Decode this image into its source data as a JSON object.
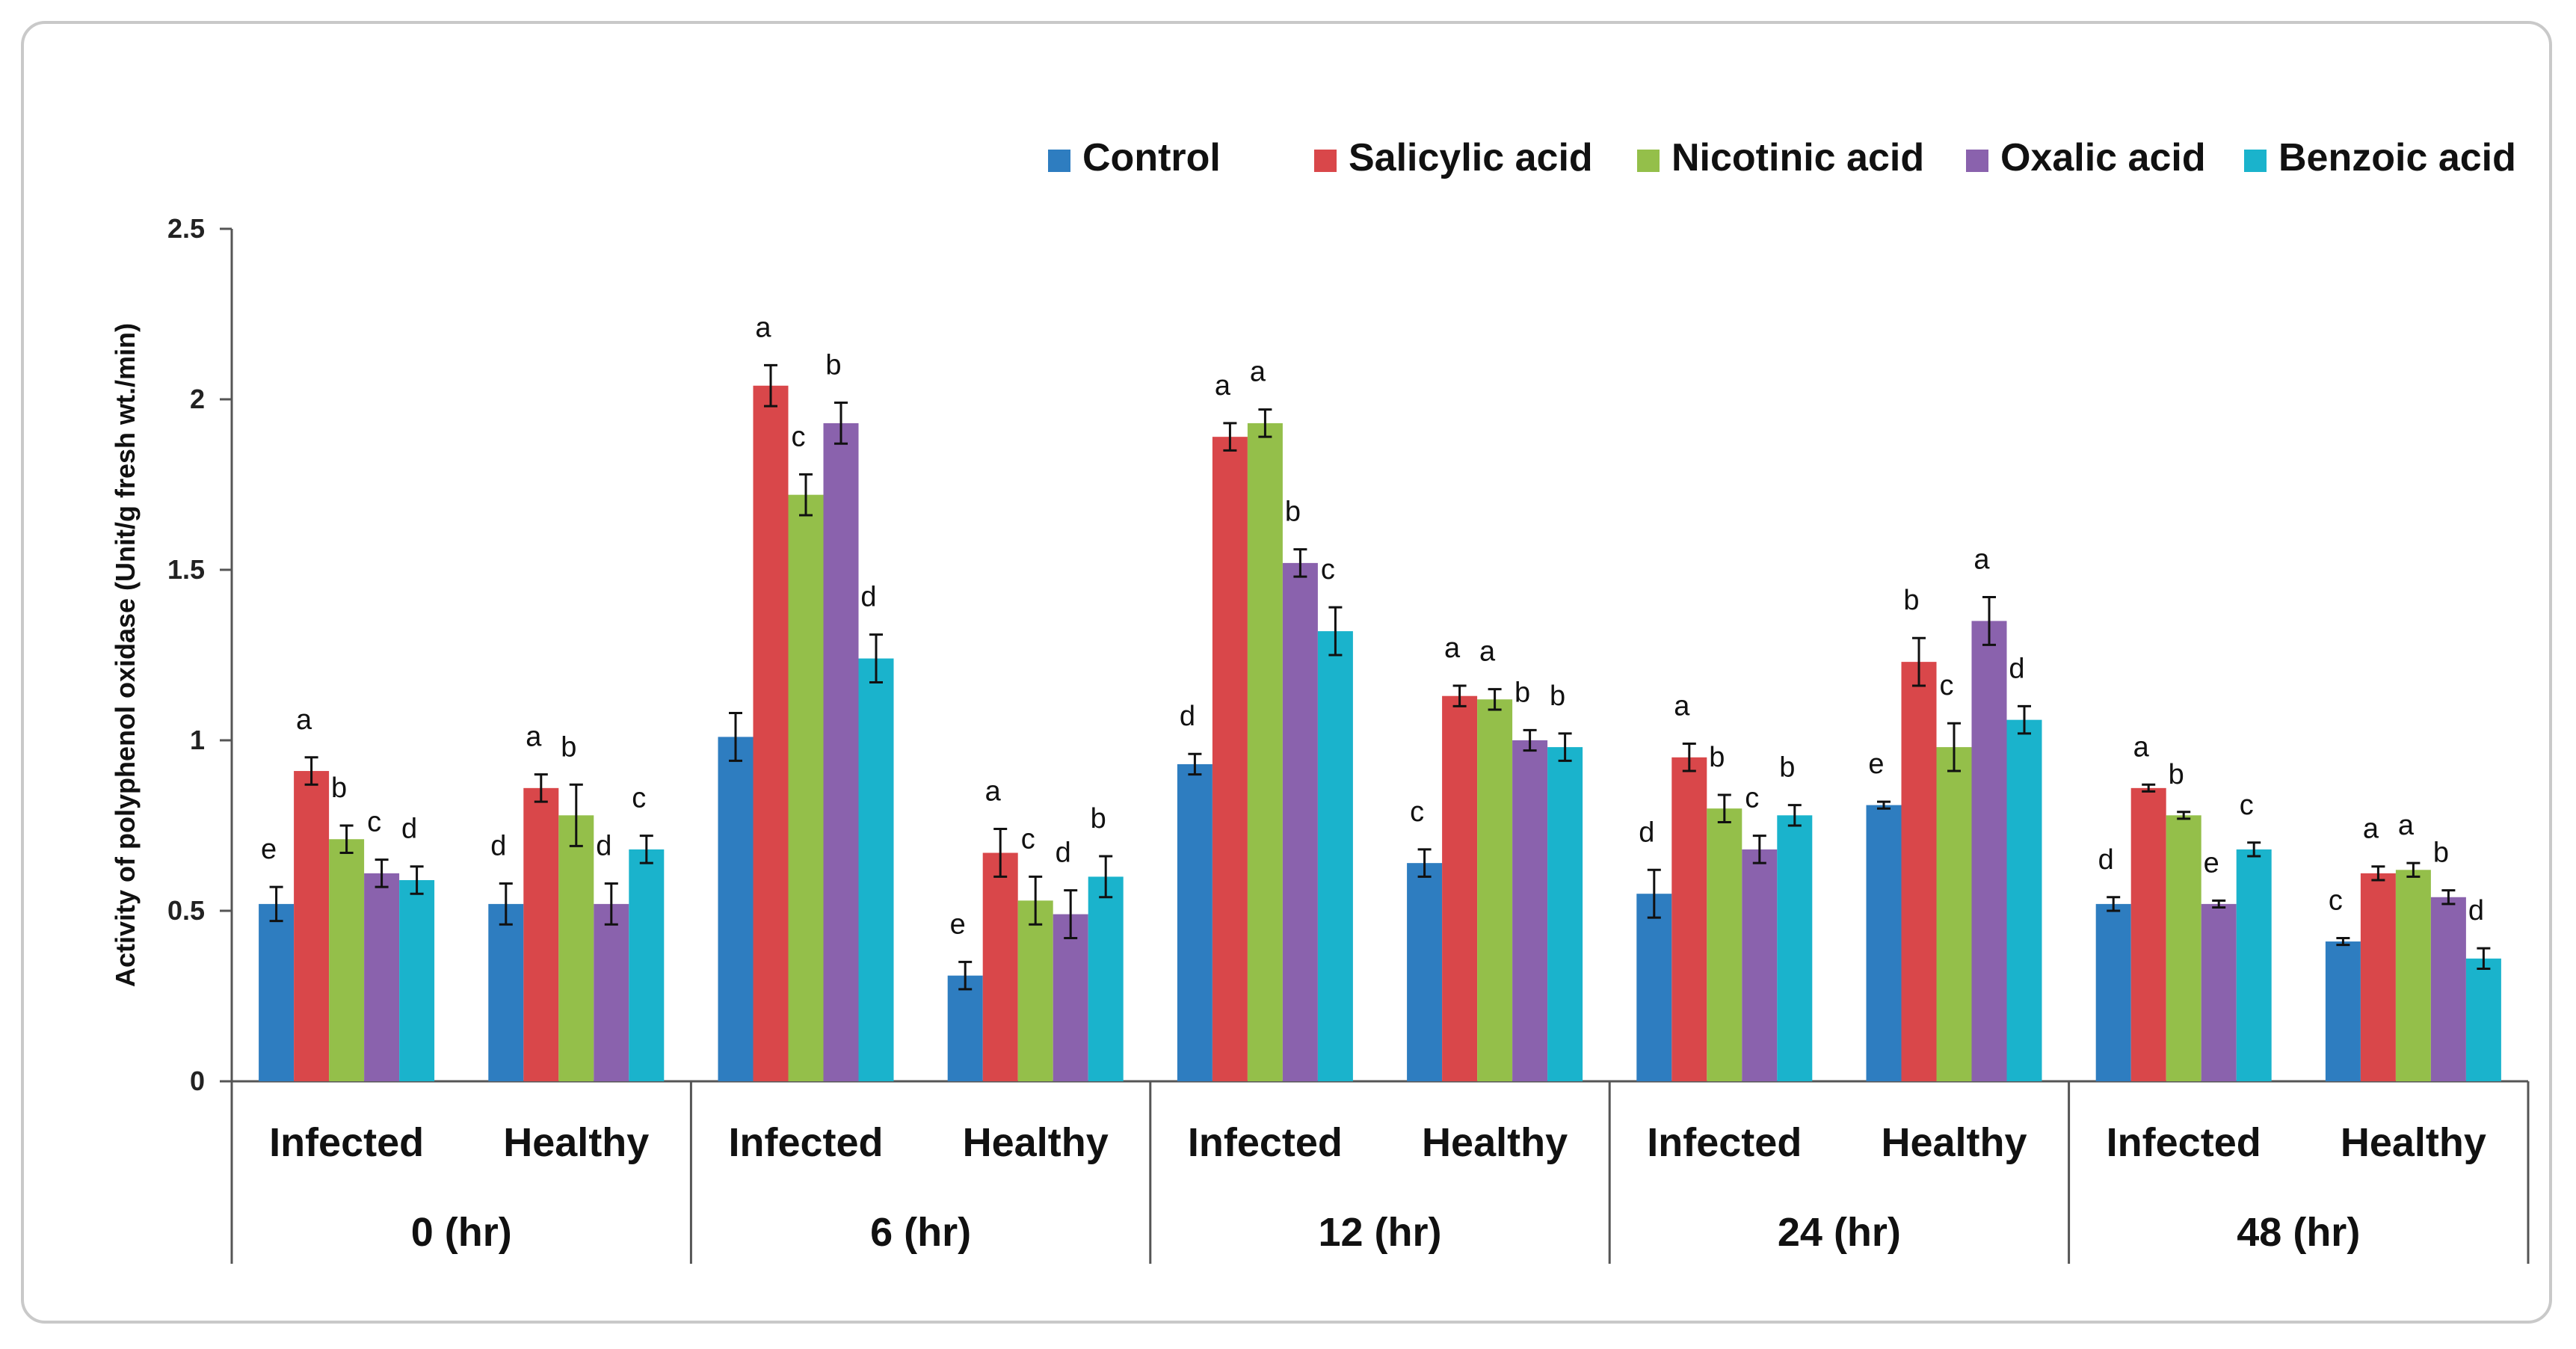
{
  "chart_data": {
    "type": "bar",
    "title": "",
    "xlabel": "",
    "ylabel": "Activity of polyphenol oxidase (Unit/g fresh wt./min)",
    "ylim": [
      0,
      2.5
    ],
    "yticks": [
      "0",
      "0.5",
      "1",
      "1.5",
      "2",
      "2.5"
    ],
    "grid": false,
    "legend_position": "top-right",
    "groups": [
      {
        "time": "0 (hr)",
        "conditions": [
          "Infected",
          "Healthy"
        ]
      },
      {
        "time": "6 (hr)",
        "conditions": [
          "Infected",
          "Healthy"
        ]
      },
      {
        "time": "12 (hr)",
        "conditions": [
          "Infected",
          "Healthy"
        ]
      },
      {
        "time": "24 (hr)",
        "conditions": [
          "Infected",
          "Healthy"
        ]
      },
      {
        "time": "48 (hr)",
        "conditions": [
          "Infected",
          "Healthy"
        ]
      }
    ],
    "categories": [
      "0 (hr) Infected",
      "0 (hr) Healthy",
      "6 (hr) Infected",
      "6 (hr) Healthy",
      "12 (hr) Infected",
      "12 (hr) Healthy",
      "24 (hr) Infected",
      "24 (hr) Healthy",
      "48 (hr) Infected",
      "48 (hr) Healthy"
    ],
    "series": [
      {
        "name": "Control",
        "color": "#2e7dc0",
        "values": [
          0.52,
          0.52,
          1.01,
          0.31,
          0.93,
          0.64,
          0.55,
          0.81,
          0.52,
          0.41
        ],
        "errors": [
          0.05,
          0.06,
          0.07,
          0.04,
          0.03,
          0.04,
          0.07,
          0.01,
          0.02,
          0.01
        ],
        "letters": [
          "e",
          "d",
          "",
          "e",
          "d",
          "c",
          "d",
          "e",
          "d",
          "c"
        ]
      },
      {
        "name": "Salicylic acid",
        "color": "#d9474a",
        "values": [
          0.91,
          0.86,
          2.04,
          0.67,
          1.89,
          1.13,
          0.95,
          1.23,
          0.86,
          0.61
        ],
        "errors": [
          0.04,
          0.04,
          0.06,
          0.07,
          0.04,
          0.03,
          0.04,
          0.07,
          0.01,
          0.02
        ],
        "letters": [
          "a",
          "a",
          "a",
          "a",
          "a",
          "a",
          "a",
          "b",
          "a",
          "a"
        ]
      },
      {
        "name": "Nicotinic acid",
        "color": "#94bf4a",
        "values": [
          0.71,
          0.78,
          1.72,
          0.53,
          1.93,
          1.12,
          0.8,
          0.98,
          0.78,
          0.62
        ],
        "errors": [
          0.04,
          0.09,
          0.06,
          0.07,
          0.04,
          0.03,
          0.04,
          0.07,
          0.01,
          0.02
        ],
        "letters": [
          "b",
          "b",
          "c",
          "c",
          "a",
          "a",
          "b",
          "c",
          "b",
          "a"
        ]
      },
      {
        "name": "Oxalic acid",
        "color": "#8a62ad",
        "values": [
          0.61,
          0.52,
          1.93,
          0.49,
          1.52,
          1.0,
          0.68,
          1.35,
          0.52,
          0.54
        ],
        "errors": [
          0.04,
          0.06,
          0.06,
          0.07,
          0.04,
          0.03,
          0.04,
          0.07,
          0.01,
          0.02
        ],
        "letters": [
          "c",
          "d",
          "b",
          "d",
          "b",
          "b",
          "c",
          "a",
          "e",
          "b"
        ]
      },
      {
        "name": "Benzoic acid",
        "color": "#1ab3cc",
        "values": [
          0.59,
          0.68,
          1.24,
          0.6,
          1.32,
          0.98,
          0.78,
          1.06,
          0.68,
          0.36
        ],
        "errors": [
          0.04,
          0.04,
          0.07,
          0.06,
          0.07,
          0.04,
          0.03,
          0.04,
          0.02,
          0.03
        ],
        "letters": [
          "d",
          "c",
          "d",
          "b",
          "c",
          "b",
          "b",
          "d",
          "c",
          "d"
        ]
      }
    ]
  }
}
